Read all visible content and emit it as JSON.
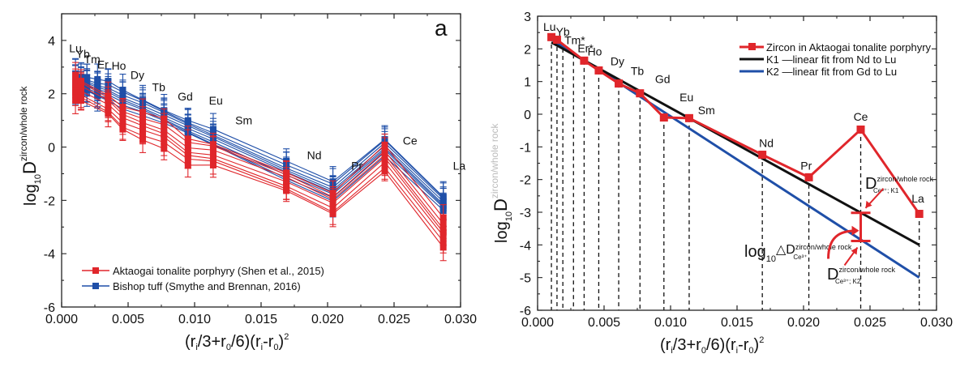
{
  "chart_data": [
    {
      "type": "line",
      "panel_label": "a",
      "xlabel": "(r_i/3+r_0/6)(r_i-r_0)^2",
      "ylabel": "log10 D zircon/whole rock",
      "xlim": [
        0,
        0.03
      ],
      "ylim": [
        -6,
        5
      ],
      "xticks": [
        "0.000",
        "0.005",
        "0.010",
        "0.015",
        "0.020",
        "0.025",
        "0.030"
      ],
      "yticks": [
        "-6",
        "-4",
        "-2",
        "0",
        "2",
        "4"
      ],
      "grid": false,
      "legend_position": "bottom-left",
      "elements": [
        "Lu",
        "Yb",
        "Tm",
        "Er",
        "Ho",
        "Dy",
        "Tb",
        "Gd",
        "Eu",
        "Sm",
        "Nd",
        "Pr",
        "Ce",
        "La"
      ],
      "x": [
        0.00104,
        0.00146,
        0.0019,
        0.0027,
        0.0035,
        0.0046,
        0.0061,
        0.0077,
        0.0095,
        0.0114,
        0.0169,
        0.0204,
        0.0243,
        0.0287
      ],
      "series": [
        {
          "name": "Aktaogai tonalite porphyry (Shen et al., 2015)",
          "color": "#e0262b",
          "elements": [
            "Lu",
            "Yb",
            "Ho",
            "Dy",
            "Tb",
            "Gd",
            "Eu",
            "Sm",
            "Nd",
            "Pr",
            "Ce",
            "La"
          ],
          "mean_values": [
            2.2,
            2.1,
            1.6,
            1.1,
            0.8,
            0.5,
            -0.2,
            -0.3,
            -1.3,
            -2.1,
            -0.4,
            -3.2
          ],
          "spread": 0.45,
          "error": 0.5
        },
        {
          "name": "Bishop tuff  (Smythe and Brennan, 2016)",
          "color": "#1f4fa8",
          "elements": [
            "Lu",
            "Yb",
            "Tm",
            "Er",
            "Ho",
            "Dy",
            "Tb",
            "Gd",
            "Eu",
            "Sm",
            "Nd",
            "Pr",
            "Ce",
            "La"
          ],
          "mean_values": [
            2.5,
            2.4,
            2.35,
            2.2,
            2.1,
            1.8,
            1.5,
            1.15,
            0.75,
            0.35,
            -0.9,
            -1.65,
            0.0,
            -2.1
          ],
          "spread": 0.3,
          "error": 0.6
        }
      ]
    },
    {
      "type": "line",
      "xlabel": "(r_i/3+r_0/6)(r_i-r_0)^2",
      "ylabel": "log10 D zircon/whole rock",
      "xlim": [
        0,
        0.03
      ],
      "ylim": [
        -6,
        3
      ],
      "xticks": [
        "0.000",
        "0.005",
        "0.010",
        "0.015",
        "0.020",
        "0.025",
        "0.030"
      ],
      "yticks": [
        "-6",
        "-5",
        "-4",
        "-3",
        "-2",
        "-1",
        "0",
        "1",
        "2",
        "3"
      ],
      "grid": false,
      "legend_position": "top-right",
      "elements": [
        "Lu",
        "Yb",
        "Tm*",
        "Er*",
        "Ho",
        "Dy",
        "Tb",
        "Gd",
        "Eu",
        "Sm",
        "Nd",
        "Pr",
        "Ce",
        "La"
      ],
      "x": [
        0.00104,
        0.00146,
        0.0019,
        0.0027,
        0.0035,
        0.0046,
        0.0061,
        0.0077,
        0.0095,
        0.0114,
        0.0169,
        0.0204,
        0.0243,
        0.0287
      ],
      "series": [
        {
          "name": "Zircon in Aktaogai tonalite porphyry",
          "color": "#e0262b",
          "elements": [
            "Lu",
            "Yb",
            "Ho",
            "Dy",
            "Tb",
            "Gd",
            "Eu",
            "Sm",
            "Nd",
            "Pr",
            "Ce",
            "La"
          ],
          "x": [
            0.00104,
            0.00146,
            0.0035,
            0.0046,
            0.0061,
            0.0077,
            0.0095,
            0.0114,
            0.0169,
            0.0204,
            0.0243,
            0.0287
          ],
          "values": [
            2.36,
            2.28,
            1.64,
            1.34,
            0.94,
            0.64,
            -0.1,
            -0.12,
            -1.24,
            -1.93,
            -0.47,
            -3.05
          ]
        },
        {
          "name": "K1",
          "description": "linear fit from Nd to Lu",
          "color": "#111111",
          "x": [
            0.00104,
            0.0287
          ],
          "values": [
            2.2,
            -4.0
          ]
        },
        {
          "name": "K2",
          "description": "linear fit from Gd to Lu",
          "color": "#1f4fa8",
          "x": [
            0.00104,
            0.0287
          ],
          "values": [
            2.3,
            -5.0
          ]
        }
      ],
      "annotations": {
        "k1_label": "D",
        "k1_sup": "zircon/whole rock",
        "k1_sub": "Ce³⁺; K1",
        "k2_label": "D",
        "k2_sup": "zircon/whole rock",
        "k2_sub": "Ce³⁺; K2",
        "delta_prefix": "log",
        "delta_sub10": "10",
        "delta_main": "△D",
        "delta_sup": "zircon/whole rock",
        "delta_sub": "Ce³⁺",
        "ce_x": 0.0243,
        "ce_k1": -3.02,
        "ce_k2": -3.88
      }
    }
  ],
  "legend": {
    "left": [
      "Aktaogai tonalite porphyry (Shen et al., 2015)",
      "Bishop tuff  (Smythe and Brennan, 2016)"
    ],
    "right": [
      "Zircon in Aktaogai tonalite porphyry",
      "K1 —linear fit from Nd to Lu",
      "K2 —linear fit from Gd to Lu"
    ]
  },
  "axis_text": {
    "log": "log",
    "ten": "10",
    "D": "D",
    "sup": "zircon/whole rock",
    "x_a": "(r",
    "x_i": "i",
    "x_b": "/3+r",
    "x_0": "0",
    "x_c": "/6)(r",
    "x_i2": "i",
    "x_d": "-r",
    "x_02": "0",
    "x_e": ")",
    "x_sq": "2"
  }
}
